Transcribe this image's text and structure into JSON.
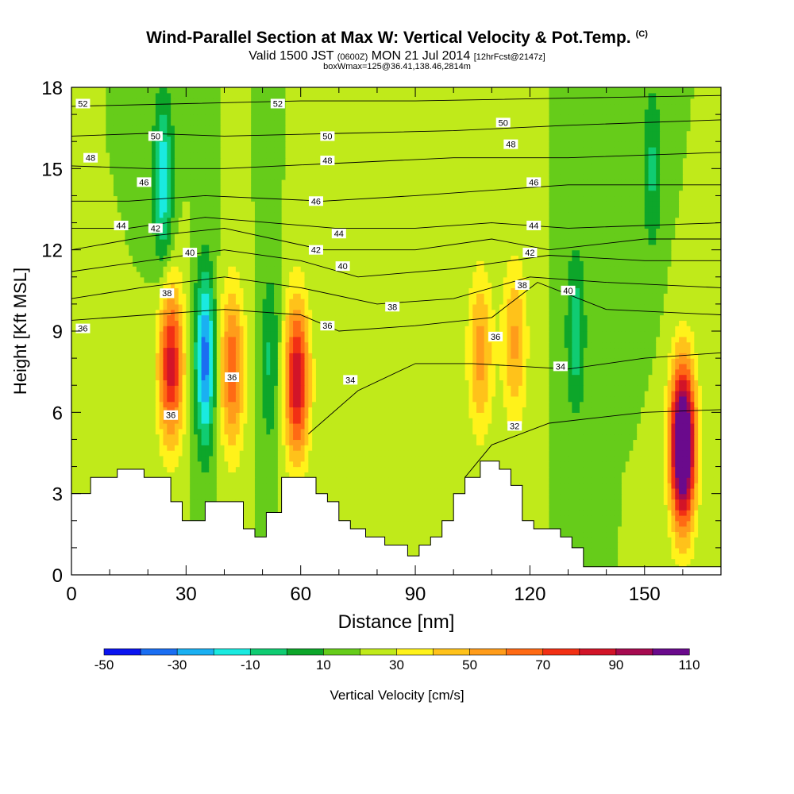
{
  "header": {
    "title": "Wind-Parallel Section at Max W: Vertical Velocity & Pot.Temp.",
    "copyright": "(C)",
    "valid_prefix": "Valid 1500 JST",
    "valid_utc": "(0600Z)",
    "valid_date": "MON 21 Jul 2014",
    "forecast": "[12hrFcst@2147z]",
    "box_info": "boxWmax=125@36.41,138.46,2814m"
  },
  "chart_data": {
    "type": "heatmap",
    "xlabel": "Distance [nm]",
    "ylabel": "Height [Kft MSL]",
    "xlim": [
      0,
      170
    ],
    "ylim": [
      0,
      18
    ],
    "x_ticks": [
      "0",
      "30",
      "60",
      "90",
      "120",
      "150"
    ],
    "y_ticks": [
      "0",
      "3",
      "6",
      "9",
      "12",
      "15",
      "18"
    ],
    "colorbar": {
      "label": "Vertical Velocity [cm/s]",
      "tick_labels": [
        "-50",
        "-30",
        "-10",
        "10",
        "30",
        "50",
        "70",
        "90",
        "110"
      ],
      "colors": [
        "#0a14f0",
        "#1a6ef2",
        "#1ab0f2",
        "#1aeae0",
        "#10cc72",
        "#0da62a",
        "#66cc1a",
        "#c0ea1a",
        "#fff21a",
        "#ffc21a",
        "#ff9c1a",
        "#ff6a14",
        "#f23014",
        "#d21428",
        "#a60a50",
        "#6a0a8c"
      ]
    },
    "background_w": 10,
    "updrafts": [
      {
        "x": 26,
        "y": 7.8,
        "peak": 75
      },
      {
        "x": 42,
        "y": 7.6,
        "peak": 58
      },
      {
        "x": 59,
        "y": 7.2,
        "peak": 78
      },
      {
        "x": 107,
        "y": 8.2,
        "peak": 45
      },
      {
        "x": 116,
        "y": 8.6,
        "peak": 42
      },
      {
        "x": 160,
        "y": 4.8,
        "peak": 125
      }
    ],
    "downdrafts": [
      {
        "x": 35,
        "y": 8.0,
        "peak": -45
      },
      {
        "x": 52,
        "y": 8.0,
        "peak": -12
      },
      {
        "x": 24,
        "y": 14.5,
        "peak": -28
      },
      {
        "x": 132,
        "y": 9.0,
        "peak": -16
      },
      {
        "x": 152,
        "y": 15.0,
        "peak": -12
      }
    ],
    "theta_contours": [
      {
        "label": "32",
        "points": [
          [
            103,
            3.6
          ],
          [
            110,
            4.8
          ],
          [
            125,
            5.6
          ],
          [
            150,
            6.0
          ],
          [
            170,
            6.1
          ]
        ]
      },
      {
        "label": "34",
        "points": [
          [
            62,
            5.2
          ],
          [
            75,
            6.8
          ],
          [
            90,
            7.8
          ],
          [
            105,
            7.8
          ],
          [
            130,
            7.6
          ],
          [
            150,
            8.0
          ],
          [
            170,
            8.2
          ]
        ]
      },
      {
        "label": "36",
        "points": [
          [
            0,
            9.4
          ],
          [
            20,
            9.6
          ],
          [
            40,
            9.8
          ],
          [
            60,
            9.6
          ],
          [
            70,
            9.0
          ],
          [
            90,
            9.2
          ],
          [
            110,
            9.5
          ],
          [
            122,
            10.8
          ],
          [
            140,
            9.8
          ],
          [
            170,
            9.6
          ]
        ]
      },
      {
        "label": "38",
        "points": [
          [
            0,
            10.2
          ],
          [
            18,
            10.6
          ],
          [
            40,
            11.0
          ],
          [
            60,
            10.6
          ],
          [
            80,
            10.0
          ],
          [
            100,
            10.2
          ],
          [
            120,
            11.0
          ],
          [
            140,
            10.8
          ],
          [
            170,
            10.6
          ]
        ]
      },
      {
        "label": "40",
        "points": [
          [
            0,
            11.2
          ],
          [
            20,
            11.6
          ],
          [
            40,
            12.0
          ],
          [
            60,
            11.6
          ],
          [
            75,
            11.0
          ],
          [
            100,
            11.3
          ],
          [
            125,
            11.8
          ],
          [
            150,
            11.6
          ],
          [
            170,
            11.6
          ]
        ]
      },
      {
        "label": "42",
        "points": [
          [
            0,
            12.0
          ],
          [
            20,
            12.5
          ],
          [
            40,
            12.8
          ],
          [
            66,
            12.0
          ],
          [
            90,
            12.0
          ],
          [
            110,
            12.4
          ],
          [
            125,
            12.0
          ],
          [
            150,
            12.4
          ],
          [
            170,
            12.4
          ]
        ]
      },
      {
        "label": "44",
        "points": [
          [
            0,
            12.8
          ],
          [
            15,
            12.8
          ],
          [
            35,
            13.2
          ],
          [
            69,
            12.8
          ],
          [
            90,
            12.8
          ],
          [
            110,
            13.0
          ],
          [
            130,
            12.8
          ],
          [
            170,
            13.0
          ]
        ]
      },
      {
        "label": "46",
        "points": [
          [
            0,
            13.8
          ],
          [
            15,
            13.8
          ],
          [
            35,
            14.0
          ],
          [
            66,
            13.8
          ],
          [
            90,
            14.0
          ],
          [
            110,
            14.2
          ],
          [
            130,
            14.4
          ],
          [
            170,
            14.4
          ]
        ]
      },
      {
        "label": "48",
        "points": [
          [
            0,
            15.1
          ],
          [
            20,
            15.0
          ],
          [
            40,
            15.0
          ],
          [
            70,
            15.2
          ],
          [
            100,
            15.4
          ],
          [
            130,
            15.4
          ],
          [
            170,
            15.6
          ]
        ]
      },
      {
        "label": "50",
        "points": [
          [
            0,
            16.2
          ],
          [
            20,
            16.3
          ],
          [
            40,
            16.2
          ],
          [
            70,
            16.3
          ],
          [
            100,
            16.4
          ],
          [
            130,
            16.6
          ],
          [
            170,
            16.8
          ]
        ]
      },
      {
        "label": "52",
        "points": [
          [
            0,
            17.3
          ],
          [
            30,
            17.4
          ],
          [
            60,
            17.5
          ],
          [
            90,
            17.5
          ],
          [
            130,
            17.6
          ],
          [
            170,
            17.7
          ]
        ]
      }
    ],
    "theta_labels": [
      {
        "text": "52",
        "x": 3,
        "y": 17.4
      },
      {
        "text": "52",
        "x": 54,
        "y": 17.4
      },
      {
        "text": "50",
        "x": 22,
        "y": 16.2
      },
      {
        "text": "50",
        "x": 67,
        "y": 16.2
      },
      {
        "text": "50",
        "x": 113,
        "y": 16.7
      },
      {
        "text": "48",
        "x": 5,
        "y": 15.4
      },
      {
        "text": "48",
        "x": 67,
        "y": 15.3
      },
      {
        "text": "48",
        "x": 115,
        "y": 15.9
      },
      {
        "text": "46",
        "x": 19,
        "y": 14.5
      },
      {
        "text": "46",
        "x": 64,
        "y": 13.8
      },
      {
        "text": "46",
        "x": 121,
        "y": 14.5
      },
      {
        "text": "44",
        "x": 13,
        "y": 12.9
      },
      {
        "text": "44",
        "x": 70,
        "y": 12.6
      },
      {
        "text": "44",
        "x": 121,
        "y": 12.9
      },
      {
        "text": "42",
        "x": 22,
        "y": 12.8
      },
      {
        "text": "42",
        "x": 64,
        "y": 12.0
      },
      {
        "text": "42",
        "x": 120,
        "y": 11.9
      },
      {
        "text": "40",
        "x": 31,
        "y": 11.9
      },
      {
        "text": "40",
        "x": 71,
        "y": 11.4
      },
      {
        "text": "40",
        "x": 130,
        "y": 10.5
      },
      {
        "text": "38",
        "x": 25,
        "y": 10.4
      },
      {
        "text": "38",
        "x": 84,
        "y": 9.9
      },
      {
        "text": "38",
        "x": 118,
        "y": 10.7
      },
      {
        "text": "36",
        "x": 3,
        "y": 9.1
      },
      {
        "text": "36",
        "x": 67,
        "y": 9.2
      },
      {
        "text": "36",
        "x": 111,
        "y": 8.8
      },
      {
        "text": "36",
        "x": 42,
        "y": 7.3
      },
      {
        "text": "36",
        "x": 26,
        "y": 5.9
      },
      {
        "text": "34",
        "x": 73,
        "y": 7.2
      },
      {
        "text": "34",
        "x": 128,
        "y": 7.7
      },
      {
        "text": "32",
        "x": 116,
        "y": 5.5
      }
    ],
    "terrain_kft": [
      [
        0,
        3.0
      ],
      [
        5,
        3.6
      ],
      [
        12,
        3.9
      ],
      [
        19,
        3.6
      ],
      [
        26,
        2.7
      ],
      [
        29,
        2.0
      ],
      [
        35,
        2.7
      ],
      [
        45,
        1.7
      ],
      [
        48,
        1.4
      ],
      [
        51,
        2.3
      ],
      [
        55,
        3.6
      ],
      [
        64,
        3.0
      ],
      [
        67,
        2.7
      ],
      [
        70,
        2.0
      ],
      [
        73,
        1.7
      ],
      [
        77,
        1.4
      ],
      [
        82,
        1.1
      ],
      [
        88,
        0.7
      ],
      [
        91,
        1.1
      ],
      [
        94,
        1.4
      ],
      [
        97,
        2.0
      ],
      [
        100,
        3.0
      ],
      [
        103,
        3.6
      ],
      [
        107,
        4.2
      ],
      [
        112,
        3.9
      ],
      [
        115,
        3.3
      ],
      [
        118,
        2.0
      ],
      [
        121,
        1.7
      ],
      [
        128,
        1.4
      ],
      [
        131,
        1.0
      ],
      [
        134,
        0.3
      ],
      [
        170,
        0.3
      ]
    ]
  }
}
